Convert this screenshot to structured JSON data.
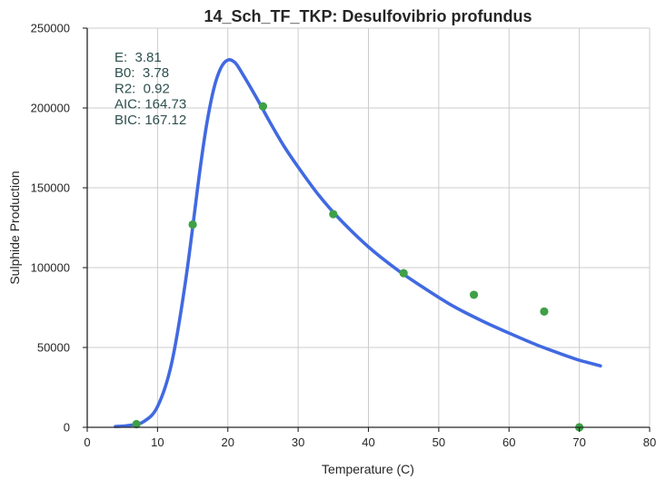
{
  "chart_data": {
    "type": "line",
    "title": "14_Sch_TF_TKP: Desulfovibrio profundus",
    "xlabel": "Temperature (C)",
    "ylabel": "Sulphide Production",
    "xlim": [
      0,
      80
    ],
    "ylim": [
      0,
      250000
    ],
    "xticks": [
      0,
      10,
      20,
      30,
      40,
      50,
      60,
      70,
      80
    ],
    "xtick_labels": [
      "0",
      "10",
      "20",
      "30",
      "40",
      "50",
      "60",
      "70",
      "80"
    ],
    "yticks": [
      0,
      50000,
      100000,
      150000,
      200000,
      250000
    ],
    "ytick_labels": [
      "0",
      "50000",
      "100000",
      "150000",
      "200000",
      "250000"
    ],
    "grid": true,
    "annotations": [
      "E:  3.81",
      "B0:  3.78",
      "R2:  0.92",
      "AIC: 164.73",
      "BIC: 167.12"
    ],
    "annotation_color": "#2f4f4f",
    "series": [
      {
        "type": "scatter",
        "color": "#3fa047",
        "points": [
          {
            "x": 7,
            "y": 2000
          },
          {
            "x": 15,
            "y": 127000
          },
          {
            "x": 25,
            "y": 201000
          },
          {
            "x": 35,
            "y": 133500
          },
          {
            "x": 45,
            "y": 96500
          },
          {
            "x": 55,
            "y": 83000
          },
          {
            "x": 65,
            "y": 72500
          },
          {
            "x": 70,
            "y": 0
          }
        ]
      },
      {
        "type": "line",
        "color": "#4169e1",
        "points": [
          {
            "x": 4,
            "y": 500
          },
          {
            "x": 6,
            "y": 1200
          },
          {
            "x": 8,
            "y": 3500
          },
          {
            "x": 10,
            "y": 13000
          },
          {
            "x": 12,
            "y": 40000
          },
          {
            "x": 14,
            "y": 92000
          },
          {
            "x": 16,
            "y": 160000
          },
          {
            "x": 17,
            "y": 190000
          },
          {
            "x": 18,
            "y": 212000
          },
          {
            "x": 19,
            "y": 225000
          },
          {
            "x": 20,
            "y": 230000
          },
          {
            "x": 21,
            "y": 228500
          },
          {
            "x": 22,
            "y": 222000
          },
          {
            "x": 24,
            "y": 207000
          },
          {
            "x": 26,
            "y": 191000
          },
          {
            "x": 28,
            "y": 176000
          },
          {
            "x": 30,
            "y": 163000
          },
          {
            "x": 33,
            "y": 145000
          },
          {
            "x": 36,
            "y": 130000
          },
          {
            "x": 40,
            "y": 113000
          },
          {
            "x": 44,
            "y": 99000
          },
          {
            "x": 48,
            "y": 87000
          },
          {
            "x": 52,
            "y": 76000
          },
          {
            "x": 56,
            "y": 67000
          },
          {
            "x": 60,
            "y": 59000
          },
          {
            "x": 64,
            "y": 51500
          },
          {
            "x": 68,
            "y": 45000
          },
          {
            "x": 70,
            "y": 42000
          },
          {
            "x": 73,
            "y": 38500
          }
        ]
      }
    ]
  }
}
